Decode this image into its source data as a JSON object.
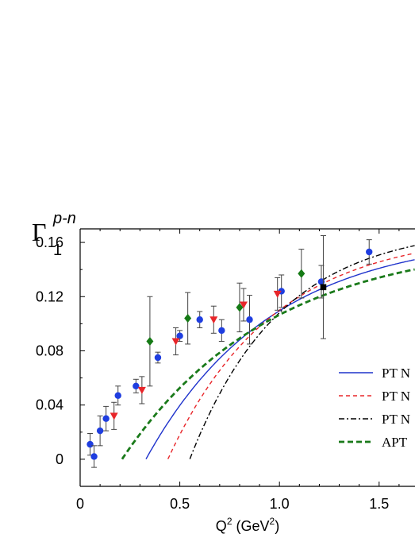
{
  "chart_data": {
    "type": "scatter",
    "ylabel_main": "Γ",
    "ylabel_sub": "1",
    "ylabel_sup": "p-n",
    "xlabel_main": "Q",
    "xlabel_sup": "2",
    "xlabel_unit_open": " (GeV",
    "xlabel_unit_sup": "2",
    "xlabel_unit_close": ")",
    "xlim": [
      0,
      1.68
    ],
    "ylim": [
      -0.02,
      0.17
    ],
    "x_ticks": [
      {
        "v": 0,
        "label": "0"
      },
      {
        "v": 0.5,
        "label": "0.5"
      },
      {
        "v": 1.0,
        "label": "1.0"
      },
      {
        "v": 1.5,
        "label": "1.5"
      }
    ],
    "y_ticks": [
      {
        "v": 0,
        "label": "0"
      },
      {
        "v": 0.04,
        "label": "0.04"
      },
      {
        "v": 0.08,
        "label": "0.08"
      },
      {
        "v": 0.12,
        "label": "0.12"
      },
      {
        "v": 0.16,
        "label": "0.16"
      }
    ],
    "legend_position": "right",
    "legend": [
      {
        "label": "PT N",
        "color": "#1f33cc",
        "dash": "solid"
      },
      {
        "label": "PT N",
        "color": "#e8262a",
        "dash": "dashed"
      },
      {
        "label": "PT N",
        "color": "#000000",
        "dash": "dash-dot"
      },
      {
        "label": "APT",
        "color": "#1a7a1a",
        "dash": "dashed-thick"
      }
    ],
    "series": [
      {
        "marker": "circle",
        "color": "#1f3ee0",
        "points": [
          [
            0.05,
            0.011,
            0.008
          ],
          [
            0.07,
            0.002,
            0.008
          ],
          [
            0.1,
            0.021,
            0.011
          ],
          [
            0.13,
            0.03,
            0.009
          ],
          [
            0.19,
            0.047,
            0.007
          ],
          [
            0.28,
            0.054,
            0.005
          ],
          [
            0.39,
            0.075,
            0.004
          ],
          [
            0.5,
            0.091,
            0.004
          ],
          [
            0.6,
            0.103,
            0.006
          ],
          [
            0.71,
            0.095,
            0.008
          ],
          [
            0.85,
            0.103,
            0.018
          ],
          [
            1.01,
            0.124,
            0.012
          ],
          [
            1.21,
            0.131,
            0.012
          ],
          [
            1.45,
            0.153,
            0.009
          ]
        ]
      },
      {
        "marker": "triangle-down",
        "color": "#e8262a",
        "points": [
          [
            0.17,
            0.032,
            0.01
          ],
          [
            0.31,
            0.051,
            0.01
          ],
          [
            0.48,
            0.087,
            0.01
          ],
          [
            0.67,
            0.103,
            0.01
          ],
          [
            0.82,
            0.114,
            0.012
          ],
          [
            0.99,
            0.122,
            0.012
          ]
        ]
      },
      {
        "marker": "diamond",
        "color": "#157a15",
        "points": [
          [
            0.35,
            0.087,
            0.033
          ],
          [
            0.54,
            0.104,
            0.019
          ],
          [
            0.8,
            0.112,
            0.018
          ],
          [
            1.11,
            0.137,
            0.018
          ]
        ]
      },
      {
        "marker": "square",
        "color": "#000000",
        "points": [
          [
            1.22,
            0.127,
            0.038
          ]
        ]
      }
    ],
    "curves": [
      {
        "color": "#1f33cc",
        "dash": "solid",
        "x0": 0.33,
        "a": 0.1665,
        "k": 1.6
      },
      {
        "color": "#e8262a",
        "dash": "dashed",
        "x0": 0.44,
        "a": 0.168,
        "k": 1.9
      },
      {
        "color": "#000000",
        "dash": "dash-dot",
        "x0": 0.55,
        "a": 0.172,
        "k": 2.2
      },
      {
        "color": "#1a7a1a",
        "dash": "dashed-thick",
        "x0": 0.21,
        "a": 0.1625,
        "k": 1.35
      }
    ]
  }
}
